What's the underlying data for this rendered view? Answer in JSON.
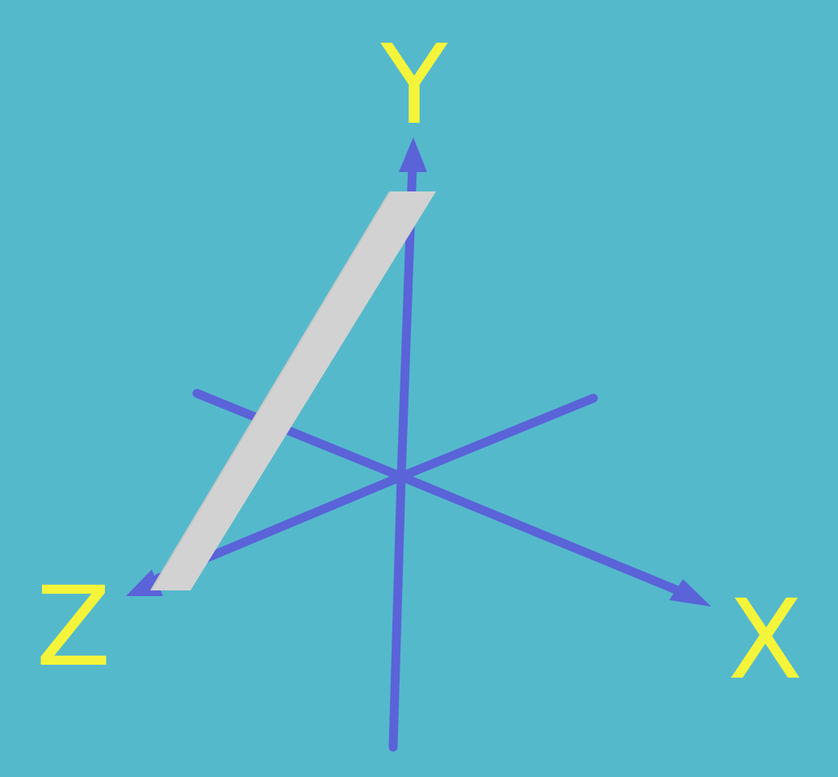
{
  "scene": {
    "background_color": "#55b9cc",
    "axis_color": "#5a63d8",
    "label_color": "#f4f53a",
    "slab_color": "#d2d2d2",
    "labels": {
      "x": "X",
      "y": "Y",
      "z": "Z"
    },
    "axes": [
      {
        "name": "x-axis",
        "label_key": "x"
      },
      {
        "name": "y-axis",
        "label_key": "y"
      },
      {
        "name": "z-axis",
        "label_key": "z"
      }
    ],
    "object": {
      "shape": "slab",
      "description_color": "light-gray"
    }
  }
}
